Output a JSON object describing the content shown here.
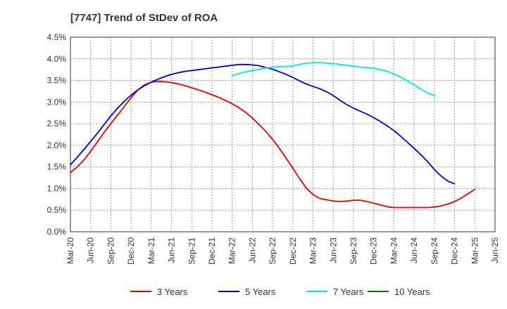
{
  "chart_data": {
    "type": "line",
    "title": "[7747]  Trend of StDev of ROA",
    "xlabel": "",
    "ylabel": "",
    "x_ticks": [
      "Mar-20",
      "Jun-20",
      "Sep-20",
      "Dec-20",
      "Mar-21",
      "Jun-21",
      "Sep-21",
      "Dec-21",
      "Mar-22",
      "Jun-22",
      "Sep-22",
      "Dec-22",
      "Mar-23",
      "Jun-23",
      "Sep-23",
      "Dec-23",
      "Mar-24",
      "Jun-24",
      "Sep-24",
      "Dec-24",
      "Mar-25",
      "Jun-25"
    ],
    "y_ticks": [
      "0.0%",
      "0.5%",
      "1.0%",
      "1.5%",
      "2.0%",
      "2.5%",
      "3.0%",
      "3.5%",
      "4.0%",
      "4.5%"
    ],
    "ylim": [
      0,
      4.5
    ],
    "grid": true,
    "legend_position": "bottom",
    "series": [
      {
        "name": "3 Years",
        "color": "#e00000",
        "points": [
          [
            "Mar-20",
            1.37
          ],
          [
            "Apr-20",
            1.5
          ],
          [
            "May-20",
            1.66
          ],
          [
            "Jun-20",
            1.86
          ],
          [
            "Jul-20",
            2.08
          ],
          [
            "Aug-20",
            2.3
          ],
          [
            "Sep-20",
            2.5
          ],
          [
            "Oct-20",
            2.7
          ],
          [
            "Nov-20",
            2.9
          ],
          [
            "Dec-20",
            3.1
          ],
          [
            "Jan-21",
            3.28
          ],
          [
            "Feb-21",
            3.4
          ],
          [
            "Mar-21",
            3.46
          ],
          [
            "Apr-21",
            3.48
          ],
          [
            "May-21",
            3.47
          ],
          [
            "Jun-21",
            3.45
          ],
          [
            "Jul-21",
            3.42
          ],
          [
            "Aug-21",
            3.38
          ],
          [
            "Sep-21",
            3.33
          ],
          [
            "Oct-21",
            3.28
          ],
          [
            "Nov-21",
            3.23
          ],
          [
            "Dec-21",
            3.17
          ],
          [
            "Jan-22",
            3.11
          ],
          [
            "Feb-22",
            3.04
          ],
          [
            "Mar-22",
            2.96
          ],
          [
            "Apr-22",
            2.87
          ],
          [
            "May-22",
            2.76
          ],
          [
            "Jun-22",
            2.63
          ],
          [
            "Jul-22",
            2.48
          ],
          [
            "Aug-22",
            2.32
          ],
          [
            "Sep-22",
            2.14
          ],
          [
            "Oct-22",
            1.93
          ],
          [
            "Nov-22",
            1.7
          ],
          [
            "Dec-22",
            1.47
          ],
          [
            "Jan-23",
            1.23
          ],
          [
            "Feb-23",
            1.01
          ],
          [
            "Mar-23",
            0.86
          ],
          [
            "Apr-23",
            0.77
          ],
          [
            "May-23",
            0.74
          ],
          [
            "Jun-23",
            0.71
          ],
          [
            "Jul-23",
            0.7
          ],
          [
            "Aug-23",
            0.71
          ],
          [
            "Sep-23",
            0.73
          ],
          [
            "Oct-23",
            0.73
          ],
          [
            "Nov-23",
            0.7
          ],
          [
            "Dec-23",
            0.66
          ],
          [
            "Jan-24",
            0.62
          ],
          [
            "Feb-24",
            0.58
          ],
          [
            "Mar-24",
            0.56
          ],
          [
            "Apr-24",
            0.56
          ],
          [
            "May-24",
            0.56
          ],
          [
            "Jun-24",
            0.56
          ],
          [
            "Jul-24",
            0.56
          ],
          [
            "Aug-24",
            0.56
          ],
          [
            "Sep-24",
            0.57
          ],
          [
            "Oct-24",
            0.6
          ],
          [
            "Nov-24",
            0.64
          ],
          [
            "Dec-24",
            0.7
          ],
          [
            "Jan-25",
            0.78
          ],
          [
            "Feb-25",
            0.88
          ],
          [
            "Mar-25",
            0.98
          ]
        ]
      },
      {
        "name": "5 Years",
        "color": "#0000cc",
        "points": [
          [
            "Mar-20",
            1.55
          ],
          [
            "Apr-20",
            1.72
          ],
          [
            "May-20",
            1.9
          ],
          [
            "Jun-20",
            2.09
          ],
          [
            "Jul-20",
            2.28
          ],
          [
            "Aug-20",
            2.48
          ],
          [
            "Sep-20",
            2.68
          ],
          [
            "Oct-20",
            2.86
          ],
          [
            "Nov-20",
            3.02
          ],
          [
            "Dec-20",
            3.16
          ],
          [
            "Jan-21",
            3.28
          ],
          [
            "Feb-21",
            3.38
          ],
          [
            "Mar-21",
            3.46
          ],
          [
            "Apr-21",
            3.53
          ],
          [
            "May-21",
            3.59
          ],
          [
            "Jun-21",
            3.64
          ],
          [
            "Jul-21",
            3.68
          ],
          [
            "Aug-21",
            3.71
          ],
          [
            "Sep-21",
            3.73
          ],
          [
            "Oct-21",
            3.75
          ],
          [
            "Nov-21",
            3.77
          ],
          [
            "Dec-21",
            3.79
          ],
          [
            "Jan-22",
            3.81
          ],
          [
            "Feb-22",
            3.83
          ],
          [
            "Mar-22",
            3.85
          ],
          [
            "Apr-22",
            3.87
          ],
          [
            "May-22",
            3.87
          ],
          [
            "Jun-22",
            3.86
          ],
          [
            "Jul-22",
            3.84
          ],
          [
            "Aug-22",
            3.8
          ],
          [
            "Sep-22",
            3.76
          ],
          [
            "Oct-22",
            3.7
          ],
          [
            "Nov-22",
            3.64
          ],
          [
            "Dec-22",
            3.57
          ],
          [
            "Jan-23",
            3.49
          ],
          [
            "Feb-23",
            3.42
          ],
          [
            "Mar-23",
            3.36
          ],
          [
            "Apr-23",
            3.31
          ],
          [
            "May-23",
            3.24
          ],
          [
            "Jun-23",
            3.15
          ],
          [
            "Jul-23",
            3.04
          ],
          [
            "Aug-23",
            2.94
          ],
          [
            "Sep-23",
            2.86
          ],
          [
            "Oct-23",
            2.79
          ],
          [
            "Nov-23",
            2.72
          ],
          [
            "Dec-23",
            2.64
          ],
          [
            "Jan-24",
            2.55
          ],
          [
            "Feb-24",
            2.45
          ],
          [
            "Mar-24",
            2.34
          ],
          [
            "Apr-24",
            2.21
          ],
          [
            "May-24",
            2.07
          ],
          [
            "Jun-24",
            1.93
          ],
          [
            "Jul-24",
            1.78
          ],
          [
            "Aug-24",
            1.62
          ],
          [
            "Sep-24",
            1.44
          ],
          [
            "Oct-24",
            1.29
          ],
          [
            "Nov-24",
            1.17
          ],
          [
            "Dec-24",
            1.11
          ]
        ]
      },
      {
        "name": "7 Years",
        "color": "#00e5e5",
        "points": [
          [
            "Mar-22",
            3.61
          ],
          [
            "Apr-22",
            3.66
          ],
          [
            "May-22",
            3.7
          ],
          [
            "Jun-22",
            3.73
          ],
          [
            "Jul-22",
            3.76
          ],
          [
            "Aug-22",
            3.79
          ],
          [
            "Sep-22",
            3.81
          ],
          [
            "Oct-22",
            3.82
          ],
          [
            "Nov-22",
            3.82
          ],
          [
            "Dec-22",
            3.84
          ],
          [
            "Jan-23",
            3.87
          ],
          [
            "Feb-23",
            3.9
          ],
          [
            "Mar-23",
            3.91
          ],
          [
            "Apr-23",
            3.91
          ],
          [
            "May-23",
            3.9
          ],
          [
            "Jun-23",
            3.89
          ],
          [
            "Jul-23",
            3.87
          ],
          [
            "Aug-23",
            3.85
          ],
          [
            "Sep-23",
            3.83
          ],
          [
            "Oct-23",
            3.81
          ],
          [
            "Nov-23",
            3.8
          ],
          [
            "Dec-23",
            3.78
          ],
          [
            "Jan-24",
            3.75
          ],
          [
            "Feb-24",
            3.71
          ],
          [
            "Mar-24",
            3.65
          ],
          [
            "Apr-24",
            3.58
          ],
          [
            "May-24",
            3.49
          ],
          [
            "Jun-24",
            3.4
          ],
          [
            "Jul-24",
            3.3
          ],
          [
            "Aug-24",
            3.21
          ],
          [
            "Sep-24",
            3.15
          ]
        ]
      },
      {
        "name": "10 Years",
        "color": "#008000",
        "points": []
      }
    ]
  }
}
